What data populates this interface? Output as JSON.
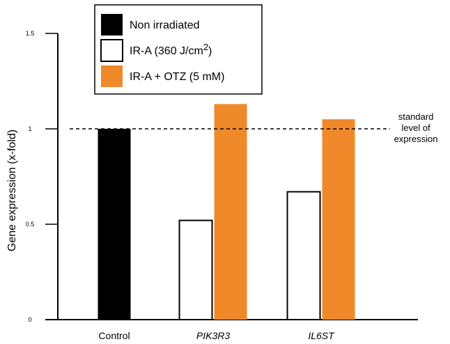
{
  "chart_data": {
    "type": "bar",
    "ylabel": "Gene expression (x-fold)",
    "ylim": [
      0,
      1.5
    ],
    "yticks": [
      {
        "value": 0,
        "label": "0"
      },
      {
        "value": 0.5,
        "label": "0.5"
      },
      {
        "value": 1,
        "label": "1"
      },
      {
        "value": 1.5,
        "label": "1.5"
      }
    ],
    "categories": [
      "Control",
      "PIK3R3",
      "IL6ST"
    ],
    "category_italic": [
      false,
      true,
      true
    ],
    "series": [
      {
        "name": "Non irradiated",
        "color": "#000000",
        "values": [
          1.0,
          null,
          null
        ]
      },
      {
        "name": "IR-A (360 J/cm",
        "name_sup": "2",
        "name_suffix": ")",
        "color": "#ffffff",
        "values": [
          null,
          0.52,
          0.67
        ]
      },
      {
        "name": "IR-A + OTZ (5 mM)",
        "color": "#f0892a",
        "values": [
          null,
          1.13,
          1.05
        ]
      }
    ],
    "reference_line": {
      "value": 1.0,
      "label_lines": [
        "standard",
        "level of",
        "expression"
      ]
    },
    "legend_position": "top-center",
    "grid": false
  }
}
